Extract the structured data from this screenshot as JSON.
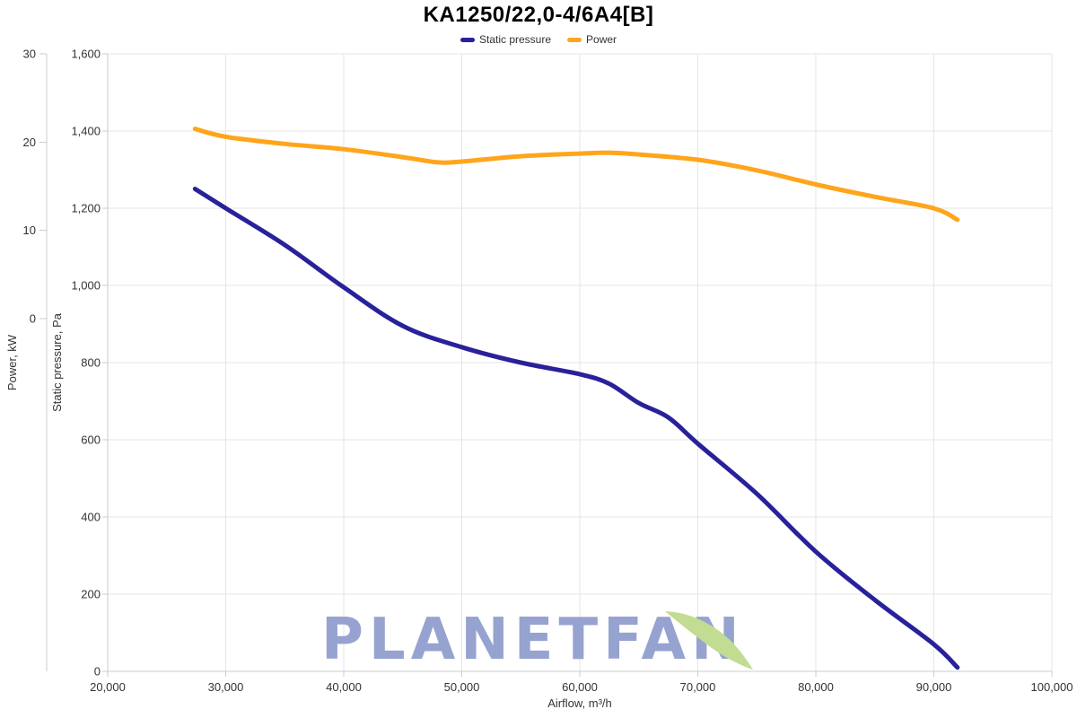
{
  "title": "KA1250/22,0-4/6A4[B]",
  "legend": {
    "items": [
      {
        "label": "Static pressure",
        "color": "#29219a"
      },
      {
        "label": "Power",
        "color": "#ffa51c"
      }
    ]
  },
  "axes": {
    "x": {
      "title": "Airflow, m³/h",
      "min": 20000,
      "max": 100000,
      "ticks": [
        {
          "value": 20000,
          "label": "20,000"
        },
        {
          "value": 30000,
          "label": "30,000"
        },
        {
          "value": 40000,
          "label": "40,000"
        },
        {
          "value": 50000,
          "label": "50,000"
        },
        {
          "value": 60000,
          "label": "60,000"
        },
        {
          "value": 70000,
          "label": "70,000"
        },
        {
          "value": 80000,
          "label": "80,000"
        },
        {
          "value": 90000,
          "label": "90,000"
        },
        {
          "value": 100000,
          "label": "100,000"
        }
      ]
    },
    "pressure": {
      "title": "Static pressure, Pa",
      "min": 0,
      "max": 1600,
      "ticks": [
        {
          "value": 0,
          "label": "0"
        },
        {
          "value": 200,
          "label": "200"
        },
        {
          "value": 400,
          "label": "400"
        },
        {
          "value": 600,
          "label": "600"
        },
        {
          "value": 800,
          "label": "800"
        },
        {
          "value": 1000,
          "label": "1,000"
        },
        {
          "value": 1200,
          "label": "1,200"
        },
        {
          "value": 1400,
          "label": "1,400"
        },
        {
          "value": 1600,
          "label": "1,600"
        }
      ]
    },
    "power": {
      "title": "Power, kW",
      "min": 0,
      "max": 30,
      "ticks": [
        {
          "value": 0,
          "label": "0"
        },
        {
          "value": 10,
          "label": "10"
        },
        {
          "value": 20,
          "label": "20"
        },
        {
          "value": 30,
          "label": "30"
        }
      ]
    }
  },
  "watermark": {
    "text_main": "PLANETFA",
    "text_last": "N",
    "color_main": "#96a3d0",
    "color_leaf": "#c2dc92"
  },
  "colors": {
    "gridline": "#e6e6e6",
    "axis_line": "#cccccc",
    "tick_mark": "#cccccc",
    "tick_label": "#333333",
    "axis_title": "#333333"
  },
  "chart_data": {
    "type": "line",
    "title": "KA1250/22,0-4/6A4[B]",
    "xlabel": "Airflow, m³/h",
    "x_range": [
      20000,
      100000
    ],
    "grid": true,
    "legend_position": "top",
    "series": [
      {
        "name": "Static pressure",
        "yaxis": "pressure",
        "ylabel": "Static pressure, Pa",
        "ylim": [
          0,
          1600
        ],
        "color": "#29219a",
        "x": [
          27400,
          30000,
          35000,
          40000,
          45000,
          50000,
          55000,
          60000,
          62500,
          65000,
          67500,
          70000,
          75000,
          80000,
          85000,
          90000,
          92000
        ],
        "values": [
          1250,
          1200,
          1105,
          995,
          895,
          840,
          800,
          770,
          745,
          695,
          658,
          590,
          460,
          310,
          185,
          70,
          10
        ]
      },
      {
        "name": "Power",
        "yaxis": "power",
        "ylabel": "Power, kW",
        "ylim": [
          0,
          30
        ],
        "color": "#ffa51c",
        "x": [
          27400,
          30000,
          35000,
          40000,
          45000,
          48000,
          50000,
          55000,
          60000,
          62500,
          65000,
          70000,
          75000,
          80000,
          85000,
          90000,
          92000
        ],
        "values": [
          21.5,
          20.6,
          19.8,
          19.2,
          18.3,
          17.7,
          17.8,
          18.4,
          18.7,
          18.8,
          18.6,
          18.0,
          16.8,
          15.2,
          13.8,
          12.5,
          11.2
        ]
      }
    ]
  }
}
